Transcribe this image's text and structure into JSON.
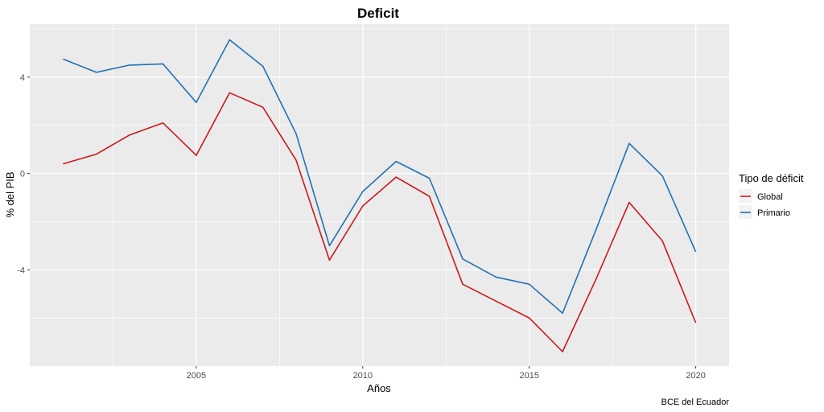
{
  "chart_data": {
    "type": "line",
    "title": "Deficit",
    "xlabel": "Años",
    "ylabel": "% del PIB",
    "caption": "BCE del Ecuador",
    "xlim": [
      2000,
      2021
    ],
    "ylim": [
      -8,
      6.2
    ],
    "xticks": [
      2005,
      2010,
      2015,
      2020
    ],
    "yticks": [
      -4,
      0,
      4
    ],
    "grid": true,
    "legend": {
      "title": "Tipo de déficit",
      "position": "right"
    },
    "x": [
      2001,
      2002,
      2003,
      2004,
      2005,
      2006,
      2007,
      2008,
      2009,
      2010,
      2011,
      2012,
      2013,
      2014,
      2015,
      2016,
      2017,
      2018,
      2019,
      2020
    ],
    "series": [
      {
        "name": "Global",
        "color": "#CB181D",
        "values": [
          0.4,
          0.8,
          1.6,
          2.1,
          0.75,
          3.35,
          2.75,
          0.55,
          -3.6,
          -1.35,
          -0.15,
          -0.95,
          -4.6,
          -5.3,
          -6.0,
          -7.4,
          -4.4,
          -1.2,
          -2.8,
          -6.2
        ]
      },
      {
        "name": "Primario",
        "color": "#2171B5",
        "values": [
          4.75,
          4.2,
          4.5,
          4.55,
          2.95,
          5.55,
          4.45,
          1.65,
          -3.0,
          -0.75,
          0.5,
          -0.2,
          -3.55,
          -4.3,
          -4.6,
          -5.8,
          -2.35,
          1.25,
          -0.1,
          -3.25
        ]
      }
    ]
  }
}
